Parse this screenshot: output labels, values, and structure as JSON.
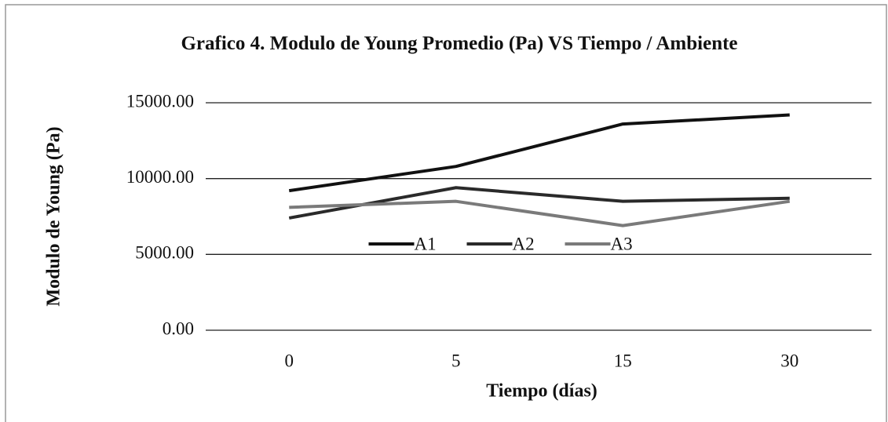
{
  "chart_data": {
    "type": "line",
    "title": "Grafico 4. Modulo de Young Promedio (Pa) VS Tiempo / Ambiente",
    "x_label": "Tiempo (días)",
    "y_label": "Modulo de Young (Pa)",
    "categories": [
      "0",
      "5",
      "15",
      "30"
    ],
    "series": [
      {
        "name": "A1",
        "color": "#111111",
        "values": [
          9200,
          10800,
          13600,
          14200
        ]
      },
      {
        "name": "A2",
        "color": "#2a2a2a",
        "values": [
          7400,
          9400,
          8500,
          8700
        ]
      },
      {
        "name": "A3",
        "color": "#7a7a7a",
        "values": [
          8100,
          8500,
          6900,
          8500
        ]
      }
    ],
    "ylim": [
      0,
      15000
    ],
    "yticks": [
      {
        "value": 0,
        "label": "0.00"
      },
      {
        "value": 5000,
        "label": "5000.00"
      },
      {
        "value": 10000,
        "label": "10000.00"
      },
      {
        "value": 15000,
        "label": "15000.00"
      }
    ],
    "grid": true,
    "legend": "center"
  }
}
